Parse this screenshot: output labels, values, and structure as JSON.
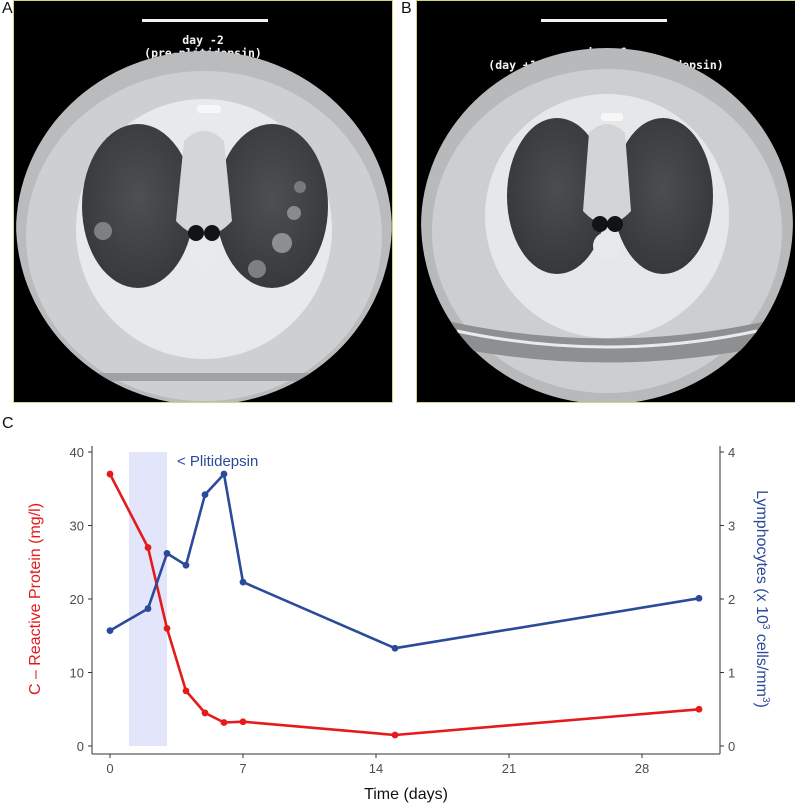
{
  "panels": {
    "a": {
      "letter": "A",
      "caption_line1": "day -2",
      "caption_line2": "(pre-plitidepsin)"
    },
    "b": {
      "letter": "B",
      "caption_line1": "day +6",
      "caption_line2": "(day +1 = 1st dose of plitidepsin)"
    },
    "c": {
      "letter": "C"
    }
  },
  "colors": {
    "crp": "#e41a1c",
    "lymph": "#2b4a9a",
    "shade": "#e3e5fb",
    "axis": "#333333"
  },
  "chart_data": {
    "type": "line",
    "xlabel": "Time (days)",
    "ylabel_left": "C – Reactive Protein (mg/l)",
    "ylabel_right_prefix": "Lymphocytes (x 10",
    "ylabel_right_sup1": "3",
    "ylabel_right_mid": " cells/mm",
    "ylabel_right_sup2": "3",
    "ylabel_right_suffix": ")",
    "xlim": [
      0,
      30
    ],
    "ylim_left": [
      0,
      40
    ],
    "ylim_right": [
      0,
      4
    ],
    "x_ticks": [
      0,
      7,
      14,
      21,
      28
    ],
    "y_ticks_left": [
      0,
      10,
      20,
      30,
      40
    ],
    "y_ticks_right": [
      0,
      1,
      2,
      3,
      4
    ],
    "annotation": "< Plitidepsin",
    "shaded_interval": [
      1,
      3
    ],
    "grid": false,
    "series": [
      {
        "name": "C – Reactive Protein (mg/l)",
        "axis": "left",
        "color": "#e41a1c",
        "x": [
          0,
          2,
          3,
          4,
          5,
          6,
          7,
          15,
          31
        ],
        "y": [
          37,
          27,
          16,
          7.5,
          4.5,
          3.2,
          3.3,
          1.5,
          5
        ]
      },
      {
        "name": "Lymphocytes (x 10^3 cells/mm^3)",
        "axis": "right",
        "color": "#2b4a9a",
        "x": [
          0,
          2,
          3,
          4,
          5,
          6,
          7,
          15,
          31
        ],
        "y": [
          1.57,
          1.87,
          2.62,
          2.46,
          3.42,
          3.7,
          2.23,
          1.33,
          2.01
        ]
      }
    ]
  }
}
